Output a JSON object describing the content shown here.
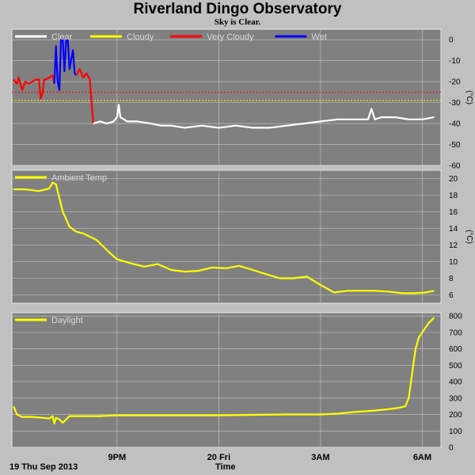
{
  "title": "Riverland Dingo Observatory",
  "subtitle": "Sky is Clear.",
  "footer": {
    "date": "19 Thu Sep 2013",
    "xlabel": "Time"
  },
  "colors": {
    "plot_bg": "#808080",
    "grid": "#c8c8c8",
    "frame": "#c0c0c0"
  },
  "x_ticks": [
    {
      "label": "9PM",
      "t": 21.0
    },
    {
      "label": "20 Fri",
      "t": 24.0
    },
    {
      "label": "3AM",
      "t": 27.0
    },
    {
      "label": "6AM",
      "t": 30.0
    }
  ],
  "chart_data": [
    {
      "type": "line",
      "name": "sky",
      "ylim": [
        -60,
        5
      ],
      "yticks": [
        0,
        -10,
        -20,
        -30,
        -40,
        -50,
        -60
      ],
      "ylabel": "(°C)",
      "legend": [
        {
          "label": "Clear",
          "color": "#ffffff"
        },
        {
          "label": "Cloudy",
          "color": "#ffff00"
        },
        {
          "label": "Very Cloudy",
          "color": "#ff0000"
        },
        {
          "label": "Wet",
          "color": "#0000ff"
        }
      ],
      "thresholds": [
        {
          "value": -25,
          "color": "#ff0000"
        },
        {
          "value": -29,
          "color": "#ffff00"
        }
      ],
      "series": [
        {
          "color": "#ff0000",
          "x": [
            17.95,
            18.05,
            18.1,
            18.2,
            18.3,
            18.4,
            18.5,
            18.6,
            18.7,
            18.75,
            18.8,
            18.85,
            18.9,
            19.0,
            19.1,
            19.15
          ],
          "y": [
            -19,
            -21,
            -18,
            -24,
            -20,
            -21,
            -20,
            -19,
            -19,
            -28,
            -26,
            -19,
            -19,
            -18,
            -17,
            -21
          ]
        },
        {
          "color": "#0000ff",
          "x": [
            19.15,
            19.2,
            19.25,
            19.3,
            19.35,
            19.4,
            19.45,
            19.5,
            19.55,
            19.6,
            19.7,
            19.75,
            19.8
          ],
          "y": [
            -21,
            -3,
            -20,
            -24,
            0,
            0,
            -15,
            0,
            0,
            -14,
            -5,
            -16,
            -17
          ]
        },
        {
          "color": "#ff0000",
          "x": [
            19.8,
            19.9,
            20.0,
            20.1,
            20.2,
            20.25,
            20.3
          ],
          "y": [
            -17,
            -14,
            -18,
            -16,
            -19,
            -30,
            -40
          ]
        },
        {
          "color": "#ffffff",
          "x": [
            20.3,
            20.5,
            20.7,
            20.9,
            21.0,
            21.05,
            21.1,
            21.3,
            21.6,
            22.0,
            22.3,
            22.6,
            23.0,
            23.5,
            24.0,
            24.5,
            25.0,
            25.5,
            26.0,
            26.5,
            27.0,
            27.5,
            28.0,
            28.4,
            28.5,
            28.6,
            28.8,
            29.2,
            29.6,
            30.0,
            30.35
          ],
          "y": [
            -40,
            -39,
            -40,
            -39,
            -37,
            -31,
            -37,
            -39,
            -39,
            -40,
            -41,
            -41,
            -42,
            -41,
            -42,
            -41,
            -42,
            -42,
            -41,
            -40,
            -39,
            -38,
            -38,
            -38,
            -33,
            -38,
            -37,
            -37,
            -38,
            -38,
            -37
          ]
        }
      ]
    },
    {
      "type": "line",
      "name": "ambient",
      "ylim": [
        5,
        21
      ],
      "yticks": [
        20,
        18,
        16,
        14,
        12,
        10,
        8,
        6
      ],
      "ylabel": "(°C)",
      "legend": [
        {
          "label": "Ambient Temp",
          "color": "#ffff00"
        }
      ],
      "series": [
        {
          "color": "#ffff00",
          "x": [
            17.95,
            18.3,
            18.7,
            19.0,
            19.1,
            19.2,
            19.4,
            19.6,
            19.8,
            20.0,
            20.4,
            20.8,
            21.0,
            21.4,
            21.8,
            22.2,
            22.6,
            23.0,
            23.4,
            23.8,
            24.2,
            24.6,
            25.0,
            25.4,
            25.8,
            26.2,
            26.6,
            27.0,
            27.4,
            27.8,
            28.2,
            28.6,
            29.0,
            29.4,
            29.8,
            30.1,
            30.35
          ],
          "y": [
            18.7,
            18.7,
            18.5,
            18.8,
            19.5,
            19.3,
            16.0,
            14.2,
            13.6,
            13.4,
            12.6,
            11.0,
            10.3,
            9.8,
            9.4,
            9.7,
            9.0,
            8.8,
            8.9,
            9.3,
            9.2,
            9.5,
            9.0,
            8.5,
            8.0,
            8.0,
            8.2,
            7.2,
            6.3,
            6.5,
            6.5,
            6.5,
            6.4,
            6.2,
            6.2,
            6.3,
            6.5
          ]
        }
      ]
    },
    {
      "type": "line",
      "name": "daylight",
      "ylim": [
        0,
        820
      ],
      "yticks": [
        800,
        700,
        600,
        500,
        400,
        300,
        200,
        100,
        0
      ],
      "ylabel": "",
      "legend": [
        {
          "label": "Daylight",
          "color": "#ffff00"
        }
      ],
      "series": [
        {
          "color": "#ffff00",
          "x": [
            17.95,
            18.05,
            18.2,
            18.5,
            18.8,
            19.0,
            19.1,
            19.15,
            19.2,
            19.3,
            19.4,
            19.6,
            19.8,
            20.5,
            21.0,
            22.0,
            23.0,
            24.0,
            25.0,
            26.0,
            27.0,
            27.5,
            28.0,
            28.5,
            29.0,
            29.3,
            29.5,
            29.6,
            29.7,
            29.8,
            29.9,
            30.0,
            30.2,
            30.35
          ],
          "y": [
            250,
            200,
            185,
            185,
            180,
            175,
            190,
            145,
            180,
            170,
            150,
            190,
            190,
            190,
            195,
            195,
            195,
            195,
            198,
            200,
            200,
            205,
            215,
            222,
            232,
            240,
            250,
            300,
            450,
            600,
            670,
            700,
            760,
            790
          ]
        }
      ]
    }
  ]
}
